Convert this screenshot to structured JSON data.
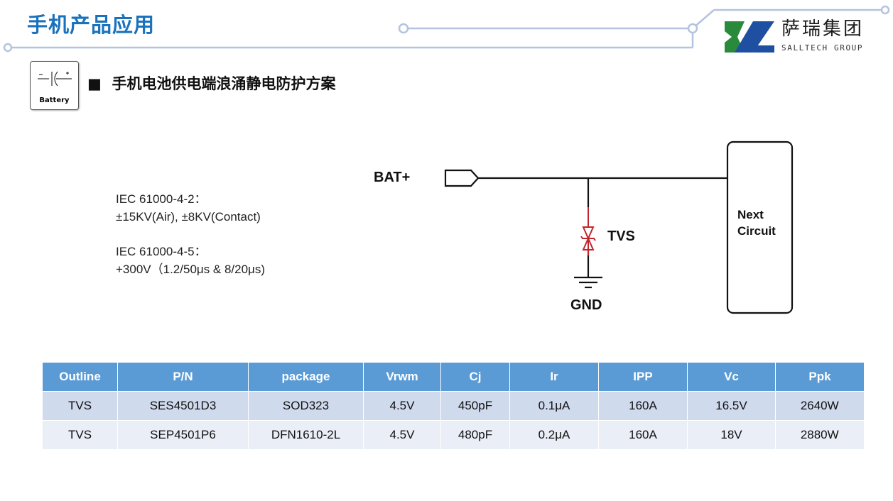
{
  "header": {
    "title": "手机产品应用",
    "logo_cn": "萨瑞集团",
    "logo_en": "SALLTECH GROUP",
    "accent": "#1a72bd"
  },
  "section": {
    "icon_label": "Battery",
    "icon": "battery-symbol-icon",
    "bullet": "■",
    "title": "手机电池供电端浪涌静电防护方案"
  },
  "specs": [
    {
      "line1": "IEC 61000-4-2：",
      "line2": "±15KV(Air), ±8KV(Contact)"
    },
    {
      "line1": "IEC 61000-4-5：",
      "line2": "+300V（1.2/50μs & 8/20μs)"
    }
  ],
  "circuit": {
    "input": "BAT+",
    "device": "TVS",
    "ground": "GND",
    "load_line1": "Next",
    "load_line2": "Circuit",
    "device_color": "#c0262d"
  },
  "table": {
    "headers": [
      "Outline",
      "P/N",
      "package",
      "Vrwm",
      "Cj",
      "Ir",
      "IPP",
      "Vc",
      "Ppk"
    ],
    "rows": [
      [
        "TVS",
        "SES4501D3",
        "SOD323",
        "4.5V",
        "450pF",
        "0.1μA",
        "160A",
        "16.5V",
        "2640W"
      ],
      [
        "TVS",
        "SEP4501P6",
        "DFN1610-2L",
        "4.5V",
        "480pF",
        "0.2μA",
        "160A",
        "18V",
        "2880W"
      ]
    ],
    "header_color": "#5b9bd5"
  }
}
